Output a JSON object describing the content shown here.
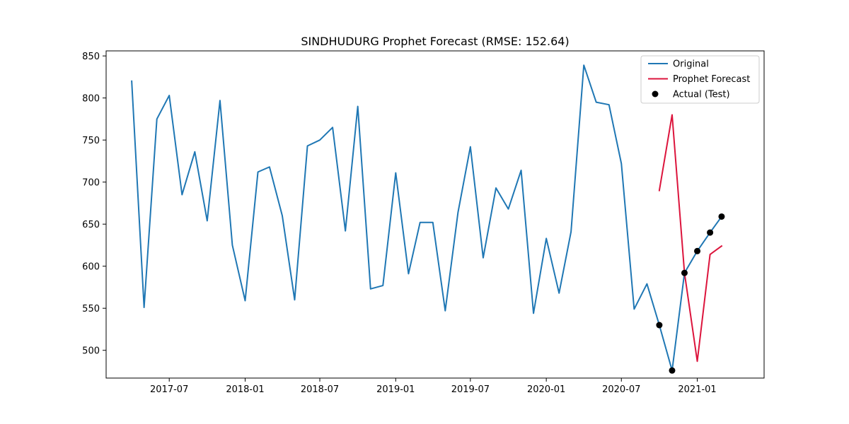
{
  "chart_data": {
    "type": "line",
    "title": "SINDHUDURG Prophet Forecast (RMSE: 152.64)",
    "xlabel": "",
    "ylabel": "",
    "x_ticks": [
      "2017-07",
      "2018-01",
      "2018-07",
      "2019-01",
      "2019-07",
      "2020-01",
      "2020-07",
      "2021-01"
    ],
    "y_ticks": [
      500,
      550,
      600,
      650,
      700,
      750,
      800,
      850
    ],
    "xlim": [
      "2017-01-29",
      "2021-06-12"
    ],
    "ylim": [
      467,
      856
    ],
    "grid": false,
    "legend_position": "top-right",
    "series": [
      {
        "name": "Original",
        "kind": "line",
        "color": "#1f77b4",
        "x": [
          "2017-04",
          "2017-05",
          "2017-06",
          "2017-07",
          "2017-08",
          "2017-09",
          "2017-10",
          "2017-11",
          "2017-12",
          "2018-01",
          "2018-02",
          "2018-03",
          "2018-04",
          "2018-05",
          "2018-06",
          "2018-07",
          "2018-08",
          "2018-09",
          "2018-10",
          "2018-11",
          "2018-12",
          "2019-01",
          "2019-02",
          "2019-03",
          "2019-04",
          "2019-05",
          "2019-06",
          "2019-07",
          "2019-08",
          "2019-09",
          "2019-10",
          "2019-11",
          "2019-12",
          "2020-01",
          "2020-02",
          "2020-03",
          "2020-04",
          "2020-05",
          "2020-06",
          "2020-07",
          "2020-08",
          "2020-09",
          "2020-10",
          "2020-11",
          "2020-12",
          "2021-01",
          "2021-02",
          "2021-03"
        ],
        "values": [
          820,
          551,
          775,
          803,
          685,
          736,
          654,
          797,
          625,
          559,
          712,
          718,
          660,
          560,
          743,
          750,
          765,
          642,
          790,
          573,
          577,
          711,
          591,
          652,
          652,
          547,
          664,
          742,
          610,
          693,
          668,
          714,
          544,
          633,
          568,
          641,
          839,
          795,
          792,
          722,
          549,
          579,
          530,
          476,
          592,
          618,
          640,
          659
        ]
      },
      {
        "name": "Prophet Forecast",
        "kind": "line",
        "color": "#dc143c",
        "x": [
          "2020-10",
          "2020-11",
          "2020-12",
          "2021-01",
          "2021-02",
          "2021-03"
        ],
        "values": [
          690,
          780,
          592,
          487,
          614,
          624
        ]
      },
      {
        "name": "Actual (Test)",
        "kind": "scatter",
        "color": "#000000",
        "x": [
          "2020-10",
          "2020-11",
          "2020-12",
          "2021-01",
          "2021-02",
          "2021-03"
        ],
        "values": [
          530,
          476,
          592,
          618,
          640,
          659
        ]
      }
    ]
  }
}
